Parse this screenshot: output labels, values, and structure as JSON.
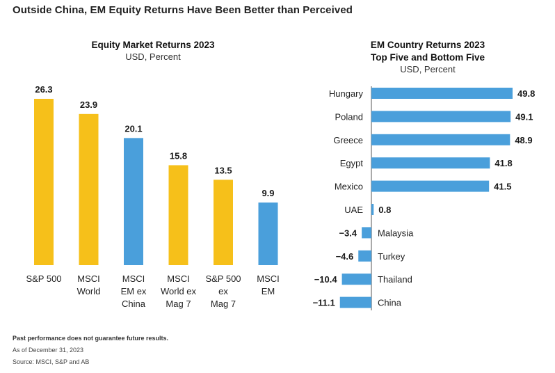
{
  "headline": "Outside China, EM Equity Returns Have Been Better than Perceived",
  "colors": {
    "yellow": "#F6C01A",
    "blue": "#4A9FDB",
    "text": "#1a1a1a",
    "axis": "#555555"
  },
  "chart_data": [
    {
      "type": "bar",
      "title": "Equity Market Returns 2023",
      "subtitle": "USD, Percent",
      "categories": [
        "S&P 500",
        "MSCI\nWorld",
        "MSCI\nEM ex\nChina",
        "MSCI\nWorld ex\nMag 7",
        "S&P 500\nex\nMag 7",
        "MSCI\nEM"
      ],
      "values": [
        26.3,
        23.9,
        20.1,
        15.8,
        13.5,
        9.9
      ],
      "value_labels": [
        "26.3",
        "23.9",
        "20.1",
        "15.8",
        "13.5",
        "9.9"
      ],
      "bar_colors": [
        "yellow",
        "yellow",
        "blue",
        "yellow",
        "yellow",
        "blue"
      ],
      "ylim": [
        0,
        26.3
      ],
      "grid": false
    },
    {
      "type": "bar",
      "orientation": "horizontal",
      "title": "EM Country Returns 2023",
      "title2": "Top Five and Bottom Five",
      "subtitle": "USD, Percent",
      "categories": [
        "Hungary",
        "Poland",
        "Greece",
        "Egypt",
        "Mexico",
        "UAE",
        "Malaysia",
        "Turkey",
        "Thailand",
        "China"
      ],
      "values": [
        49.8,
        49.1,
        48.9,
        41.8,
        41.5,
        0.8,
        -3.4,
        -4.6,
        -10.4,
        -11.1
      ],
      "value_labels": [
        "49.8",
        "49.1",
        "48.9",
        "41.8",
        "41.5",
        "0.8",
        "−3.4",
        "−4.6",
        "−10.4",
        "−11.1"
      ],
      "xlim": [
        -11.1,
        49.8
      ],
      "grid": false
    }
  ],
  "footer": {
    "disclaimer": "Past performance does not guarantee future results.",
    "as_of": "As of December 31, 2023",
    "source": "Source: MSCI, S&P and AB"
  }
}
